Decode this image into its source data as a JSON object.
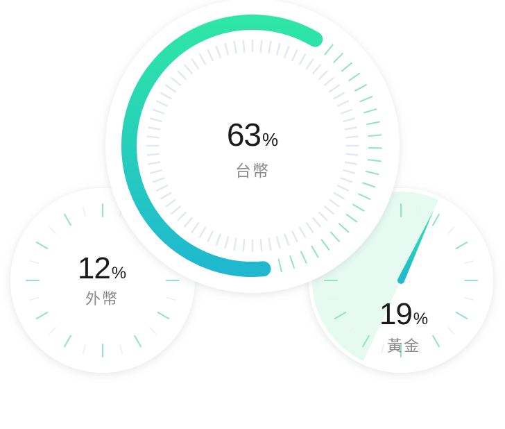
{
  "chart_data": {
    "type": "gauge",
    "unit": "%",
    "series": [
      {
        "name": "台幣",
        "value": 63
      },
      {
        "name": "外幣",
        "value": 12
      },
      {
        "name": "黃金",
        "value": 19
      }
    ]
  },
  "labels": {
    "percent_sign": "%"
  },
  "colors": {
    "accent_start": "#2ee6a6",
    "accent_end": "#1fb8cf",
    "tick_accent": "#8fe3c6",
    "tick_muted": "#e4e8ef",
    "sector_fill": "#e6faf2",
    "dial_face": "#ffffff",
    "dial_shadow": "#d9dde3"
  }
}
